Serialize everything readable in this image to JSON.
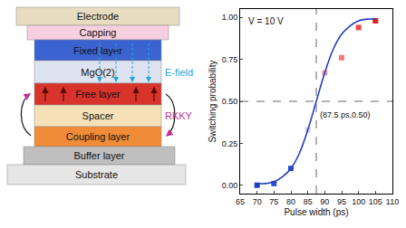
{
  "chart_data": {
    "type": "scatter",
    "x_title": "Pulse width (ps)",
    "y_title": "Switching probability",
    "note": "V = 10 V",
    "crosshair": {
      "x": 87.5,
      "y": 0.5,
      "label": "(87.5 ps,0.50)"
    },
    "series": [
      {
        "type": "scatter",
        "marker": "square",
        "x": [
          70,
          75,
          80,
          85,
          90,
          95,
          100,
          105
        ],
        "values": [
          0.0,
          0.01,
          0.1,
          0.33,
          0.67,
          0.76,
          0.94,
          0.98
        ],
        "colors": [
          "#1f3fbf",
          "#2f50cc",
          "#2a4fd0",
          "#d6cde6",
          "#f2a2a6",
          "#f07a7a",
          "#ec4848",
          "#e61e1e"
        ]
      },
      {
        "type": "line",
        "color": "#1f3fbf",
        "x": [
          70,
          72.5,
          75,
          77.5,
          80,
          82.5,
          85,
          87.5,
          90,
          92.5,
          95,
          97.5,
          100,
          102.5,
          105
        ],
        "values": [
          0.01,
          0.01,
          0.02,
          0.05,
          0.1,
          0.19,
          0.33,
          0.5,
          0.67,
          0.81,
          0.9,
          0.95,
          0.98,
          0.99,
          0.99
        ]
      }
    ],
    "xlim": [
      65,
      110
    ],
    "xticks": [
      65,
      70,
      75,
      80,
      85,
      90,
      95,
      100,
      105,
      110
    ],
    "ylim": [
      -0.05,
      1.05
    ],
    "yticks": [
      {
        "value": 0,
        "label": "0.00"
      },
      {
        "value": 0.25,
        "label": "0.25"
      },
      {
        "value": 0.5,
        "label": "0.50"
      },
      {
        "value": 0.75,
        "label": "0.75"
      },
      {
        "value": 1,
        "label": "1.00"
      }
    ],
    "grid": false
  },
  "diagram": {
    "layers": [
      {
        "label": "Electrode",
        "color": "#e8dcc0"
      },
      {
        "label": "Capping",
        "color": "#f6cfe0"
      },
      {
        "label": "Fixed layer",
        "color": "#3b63d0"
      },
      {
        "label": "MgO(2)",
        "color": "#dde3f0"
      },
      {
        "label": "Free layer",
        "color": "#d8342c"
      },
      {
        "label": "Spacer",
        "color": "#f6e0b8"
      },
      {
        "label": "Coupling layer",
        "color": "#f08c38"
      },
      {
        "label": "Buffer layer",
        "color": "#bfbfbf"
      },
      {
        "label": "Substrate",
        "color": "#e6e6e6"
      }
    ],
    "efield": {
      "label": "E-field",
      "color": "#29a3d9"
    },
    "rkky": {
      "label": "RKKY",
      "color": "#c0309a"
    }
  }
}
